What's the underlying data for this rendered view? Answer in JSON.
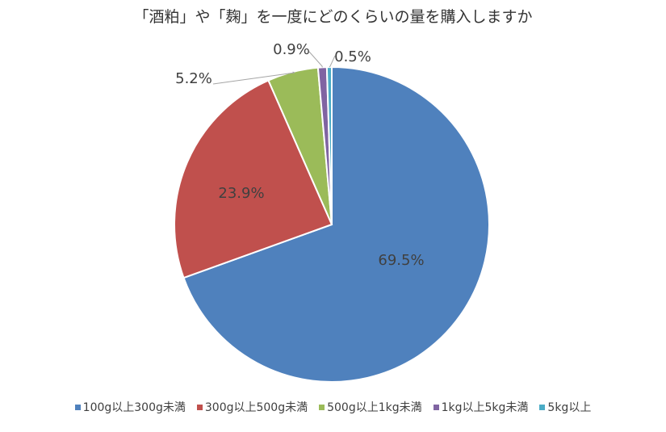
{
  "chart_data": {
    "type": "pie",
    "title": "「酒粕」や「麹」を一度にどのくらいの量を購入しますか",
    "categories": [
      "100g以上300g未満",
      "300g以上500g未満",
      "500g以上1kg未満",
      "1kg以上5kg未満",
      "5kg以上"
    ],
    "values": [
      69.5,
      23.9,
      5.2,
      0.9,
      0.5
    ],
    "value_labels": [
      "69.5%",
      "23.9%",
      "5.2%",
      "0.9%",
      "0.5%"
    ],
    "colors": [
      "#4F81BD",
      "#C0504D",
      "#9BBB59",
      "#8064A2",
      "#4BACC6"
    ],
    "start_angle_deg": 0,
    "direction": "clockwise",
    "legend_position": "bottom"
  }
}
